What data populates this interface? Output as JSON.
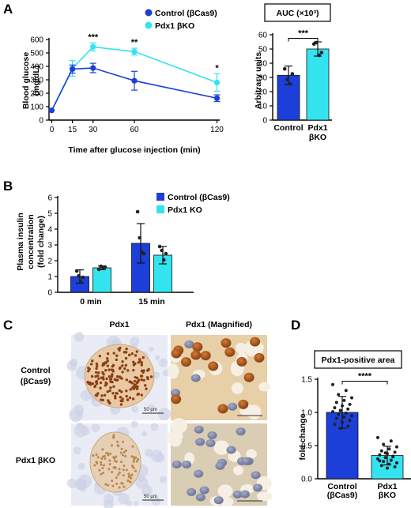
{
  "colors": {
    "control": "#1c3fd9",
    "ko": "#33e4f0",
    "errorbar": "#000000"
  },
  "panel_letters": [
    "A",
    "B",
    "C",
    "D"
  ],
  "images": {
    "col_titles": [
      "Pdx1",
      "Pdx1 (Magnified)"
    ],
    "row_labels": [
      [
        "Control",
        "(βCas9)"
      ],
      [
        "Pdx1 βKO"
      ]
    ],
    "scale_bars": [
      "50 µm",
      "50 µm"
    ]
  },
  "chart_data": [
    {
      "type": "line",
      "panel": "A",
      "xlabel": "Time after glucose injection (min)",
      "ylabel": [
        "Blood glucose",
        "(mg/dL)"
      ],
      "x": [
        0,
        15,
        30,
        60,
        120
      ],
      "xticks": [
        "0",
        "15",
        "30",
        "60",
        "120"
      ],
      "yticks": [
        "0",
        "100",
        "200",
        "300",
        "400",
        "500",
        "600"
      ],
      "ylim": [
        0,
        600
      ],
      "legend": "top",
      "series": [
        {
          "name": "Control (βCas9)",
          "values": [
            72,
            380,
            388,
            293,
            163
          ],
          "errors": [
            0,
            30,
            35,
            70,
            25
          ]
        },
        {
          "name": "Pdx1 βKO",
          "values": [
            72,
            385,
            545,
            510,
            280
          ],
          "errors": [
            0,
            58,
            30,
            25,
            65
          ]
        }
      ],
      "significance": [
        {
          "x": 30,
          "label": "***"
        },
        {
          "x": 60,
          "label": "**"
        },
        {
          "x": 120,
          "label": "*"
        }
      ]
    },
    {
      "type": "bar",
      "panel": "A",
      "title": "AUC (×10³)",
      "ylabel": "Arbitrary units",
      "categories": [
        [
          "Control"
        ],
        [
          "Pdx1",
          "βKO"
        ]
      ],
      "values": [
        31.5,
        50
      ],
      "errors": [
        6.5,
        5
      ],
      "points": [
        [
          36,
          28.5,
          25.5,
          32.5
        ],
        [
          53.5,
          54.5,
          45.5,
          47.5
        ]
      ],
      "yticks": [
        "0",
        "10",
        "20",
        "30",
        "40",
        "50",
        "60"
      ],
      "ylim": [
        0,
        60
      ],
      "significance": "***"
    },
    {
      "type": "bar",
      "panel": "B",
      "ylabel": [
        "Plasma insulin",
        "concentration",
        "(fold change)"
      ],
      "categories": [
        "0 min",
        "15 min"
      ],
      "yticks": [
        "0",
        "1",
        "2",
        "3",
        "4",
        "5",
        "6"
      ],
      "ylim": [
        0,
        6
      ],
      "legend": "top-right",
      "series": [
        {
          "name": "Control (βCas9)",
          "values": [
            1.0,
            3.1
          ],
          "errors": [
            0.42,
            1.25
          ],
          "points": [
            [
              1.35,
              1.05,
              0.65,
              0.95
            ],
            [
              5.1,
              3.45,
              2.55,
              2.45
            ]
          ]
        },
        {
          "name": "Pdx1 KO",
          "values": [
            1.55,
            2.35
          ],
          "errors": [
            0.12,
            0.55
          ],
          "points": [
            [
              1.45,
              1.65,
              1.55,
              1.6
            ],
            [
              2.9,
              2.65,
              2.05,
              2.45
            ]
          ]
        }
      ]
    },
    {
      "type": "bar",
      "panel": "D",
      "title": "Pdx1-positive area",
      "ylabel": "fold change",
      "categories": [
        [
          "Control",
          "(βCas9)"
        ],
        [
          "Pdx1",
          "βKO"
        ]
      ],
      "values": [
        1.0,
        0.35
      ],
      "errors": [
        0.24,
        0.14
      ],
      "yticks": [
        "0.0",
        "0.5",
        "1.0",
        "1.5"
      ],
      "ylim": [
        0,
        1.5
      ],
      "significance": "****",
      "points": [
        [
          1.42,
          1.33,
          1.27,
          1.22,
          1.18,
          1.15,
          1.12,
          1.1,
          1.07,
          1.05,
          1.03,
          1.01,
          0.99,
          0.97,
          0.95,
          0.93,
          0.91,
          0.88,
          0.85,
          0.82,
          0.79,
          0.76
        ],
        [
          0.62,
          0.57,
          0.52,
          0.48,
          0.45,
          0.42,
          0.4,
          0.38,
          0.36,
          0.34,
          0.32,
          0.3,
          0.28,
          0.26,
          0.24,
          0.22,
          0.2,
          0.18,
          0.16,
          0.27,
          0.33,
          0.39
        ]
      ]
    }
  ]
}
